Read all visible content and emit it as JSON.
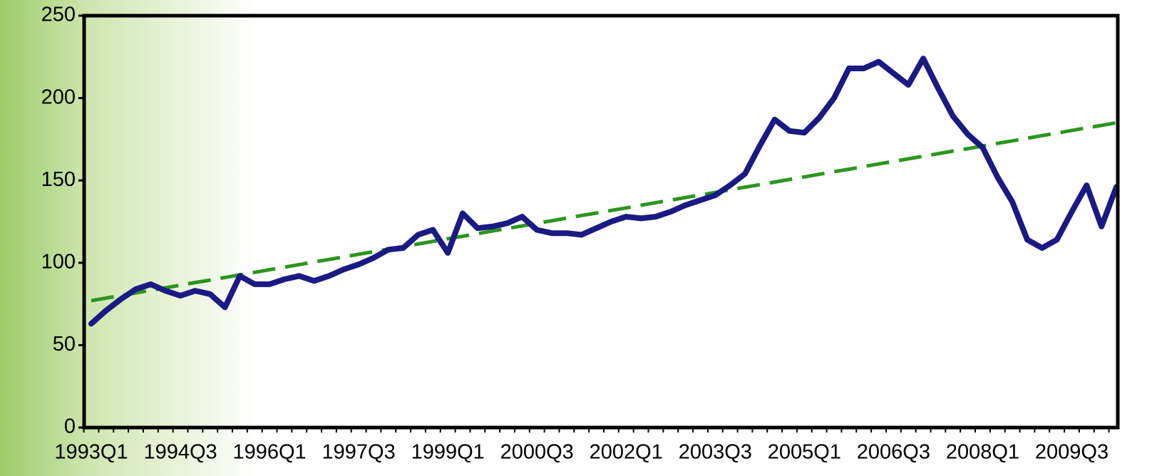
{
  "chart_data": {
    "type": "line",
    "categories": [
      "1993Q1",
      null,
      null,
      null,
      null,
      null,
      "1994Q3",
      null,
      null,
      null,
      null,
      null,
      "1996Q1",
      null,
      null,
      null,
      null,
      null,
      "1997Q3",
      null,
      null,
      null,
      null,
      null,
      "1999Q1",
      null,
      null,
      null,
      null,
      null,
      "2000Q3",
      null,
      null,
      null,
      null,
      null,
      "2002Q1",
      null,
      null,
      null,
      null,
      null,
      "2003Q3",
      null,
      null,
      null,
      null,
      null,
      "2005Q1",
      null,
      null,
      null,
      null,
      null,
      "2006Q3",
      null,
      null,
      null,
      null,
      null,
      "2008Q1",
      null,
      null,
      null,
      null,
      null,
      "2009Q3",
      null,
      null,
      null
    ],
    "series": [
      {
        "color": "#1a1a84",
        "dash": false,
        "values": [
          63,
          71,
          78,
          84,
          87,
          83,
          80,
          83,
          81,
          73,
          92,
          87,
          87,
          90,
          92,
          89,
          92,
          96,
          99,
          103,
          108,
          109,
          117,
          120,
          106,
          130,
          121,
          122,
          124,
          128,
          120,
          118,
          118,
          117,
          121,
          125,
          128,
          127,
          128,
          131,
          135,
          138,
          141,
          147,
          154,
          171,
          187,
          180,
          179,
          188,
          200,
          218,
          218,
          222,
          215,
          208,
          224,
          206,
          189,
          178,
          170,
          152,
          137,
          114,
          109,
          114,
          131,
          147,
          122,
          146
        ]
      },
      {
        "color": "#2a961e",
        "dash": true,
        "values": [
          77.0,
          78.6,
          80.1,
          81.7,
          83.3,
          84.8,
          86.4,
          88.0,
          89.5,
          91.1,
          92.7,
          94.2,
          95.8,
          97.3,
          98.9,
          100.5,
          102.0,
          103.6,
          105.2,
          106.7,
          108.3,
          109.9,
          111.4,
          113.0,
          114.6,
          116.1,
          117.7,
          119.3,
          120.8,
          122.4,
          124.0,
          125.5,
          127.1,
          128.7,
          130.2,
          131.8,
          133.3,
          134.9,
          136.5,
          138.0,
          139.6,
          141.2,
          142.7,
          144.3,
          145.9,
          147.4,
          149.0,
          150.6,
          152.1,
          153.7,
          155.3,
          156.8,
          158.4,
          160.0,
          161.5,
          163.1,
          164.7,
          166.2,
          167.8,
          169.3,
          170.9,
          172.5,
          174.0,
          175.6,
          177.2,
          178.7,
          180.3,
          181.9,
          183.4,
          185.0
        ]
      }
    ],
    "ylim": [
      0,
      250
    ],
    "yticks": [
      0,
      50,
      100,
      150,
      200,
      250
    ],
    "grid": false
  }
}
